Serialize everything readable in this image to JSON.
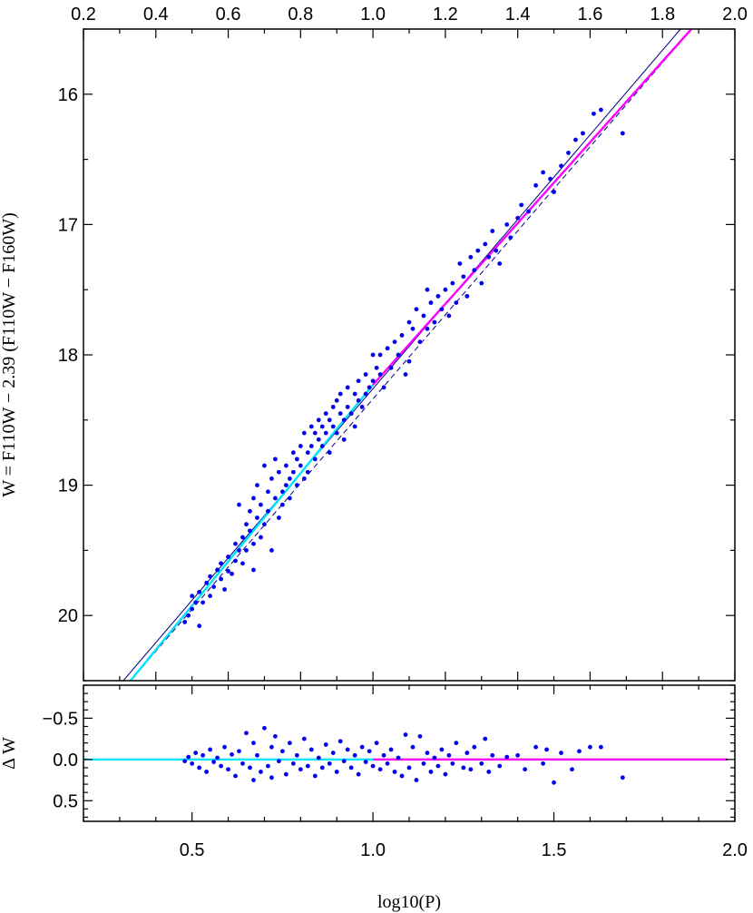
{
  "chart_data": [
    {
      "type": "scatter",
      "panel": "main",
      "title": "",
      "xlabel": "log10(P)",
      "ylabel": "W = F110W − 2.39 (F110W − F160W)",
      "xlim": [
        0.2,
        2.0
      ],
      "ylim": [
        20.5,
        15.5
      ],
      "y_inverted": true,
      "x_ticks": [
        "0.2",
        "0.4",
        "0.6",
        "0.8",
        "1.0",
        "1.2",
        "1.4",
        "1.6",
        "1.8",
        "2.0"
      ],
      "y_ticks": [
        "16",
        "17",
        "18",
        "19",
        "20"
      ],
      "grid": false,
      "lines": [
        {
          "x": [
            0.31,
            1.85
          ],
          "y": [
            20.5,
            15.5
          ],
          "color": "#000080",
          "style": "solid"
        },
        {
          "x": [
            0.33,
            1.88
          ],
          "y": [
            20.5,
            15.5
          ],
          "color": "#000080",
          "style": "dashed"
        },
        {
          "x": [
            0.33,
            1.0
          ],
          "y": [
            20.5,
            18.23
          ],
          "color": "#00e5ff",
          "style": "solid"
        },
        {
          "x": [
            1.0,
            1.88
          ],
          "y": [
            18.23,
            15.5
          ],
          "color": "#ff00ff",
          "style": "solid"
        }
      ],
      "points_color": "#0000ee",
      "points": [
        [
          0.48,
          20.05
        ],
        [
          0.49,
          20.0
        ],
        [
          0.5,
          19.95
        ],
        [
          0.5,
          19.85
        ],
        [
          0.51,
          19.9
        ],
        [
          0.52,
          20.08
        ],
        [
          0.52,
          19.82
        ],
        [
          0.53,
          19.9
        ],
        [
          0.54,
          19.75
        ],
        [
          0.55,
          19.85
        ],
        [
          0.55,
          19.7
        ],
        [
          0.56,
          19.78
        ],
        [
          0.57,
          19.65
        ],
        [
          0.58,
          19.72
        ],
        [
          0.58,
          19.6
        ],
        [
          0.59,
          19.8
        ],
        [
          0.6,
          19.55
        ],
        [
          0.6,
          19.66
        ],
        [
          0.61,
          19.68
        ],
        [
          0.62,
          19.45
        ],
        [
          0.62,
          19.58
        ],
        [
          0.63,
          19.5
        ],
        [
          0.63,
          19.15
        ],
        [
          0.64,
          19.4
        ],
        [
          0.64,
          19.6
        ],
        [
          0.65,
          19.3
        ],
        [
          0.65,
          19.5
        ],
        [
          0.66,
          19.2
        ],
        [
          0.66,
          19.35
        ],
        [
          0.67,
          19.1
        ],
        [
          0.67,
          19.45
        ],
        [
          0.67,
          19.65
        ],
        [
          0.68,
          19.25
        ],
        [
          0.68,
          19.0
        ],
        [
          0.69,
          19.4
        ],
        [
          0.69,
          19.15
        ],
        [
          0.7,
          18.85
        ],
        [
          0.7,
          19.3
        ],
        [
          0.71,
          19.05
        ],
        [
          0.71,
          19.2
        ],
        [
          0.72,
          18.95
        ],
        [
          0.72,
          19.5
        ],
        [
          0.73,
          19.1
        ],
        [
          0.73,
          18.8
        ],
        [
          0.74,
          19.25
        ],
        [
          0.74,
          18.9
        ],
        [
          0.75,
          19.05
        ],
        [
          0.75,
          19.15
        ],
        [
          0.76,
          18.85
        ],
        [
          0.76,
          19.0
        ],
        [
          0.77,
          18.95
        ],
        [
          0.77,
          19.1
        ],
        [
          0.78,
          18.75
        ],
        [
          0.78,
          18.9
        ],
        [
          0.79,
          19.0
        ],
        [
          0.79,
          18.8
        ],
        [
          0.8,
          18.85
        ],
        [
          0.8,
          18.7
        ],
        [
          0.81,
          18.95
        ],
        [
          0.81,
          18.6
        ],
        [
          0.82,
          18.75
        ],
        [
          0.82,
          18.9
        ],
        [
          0.83,
          18.55
        ],
        [
          0.83,
          18.7
        ],
        [
          0.84,
          18.8
        ],
        [
          0.84,
          18.6
        ],
        [
          0.85,
          18.65
        ],
        [
          0.85,
          18.5
        ],
        [
          0.86,
          18.7
        ],
        [
          0.86,
          18.55
        ],
        [
          0.87,
          18.45
        ],
        [
          0.87,
          18.6
        ],
        [
          0.88,
          18.75
        ],
        [
          0.88,
          18.5
        ],
        [
          0.89,
          18.4
        ],
        [
          0.89,
          18.55
        ],
        [
          0.9,
          18.35
        ],
        [
          0.9,
          18.6
        ],
        [
          0.91,
          18.45
        ],
        [
          0.91,
          18.3
        ],
        [
          0.92,
          18.5
        ],
        [
          0.92,
          18.65
        ],
        [
          0.93,
          18.4
        ],
        [
          0.93,
          18.25
        ],
        [
          0.94,
          18.45
        ],
        [
          0.95,
          18.3
        ],
        [
          0.95,
          18.55
        ],
        [
          0.96,
          18.35
        ],
        [
          0.96,
          18.2
        ],
        [
          0.97,
          18.4
        ],
        [
          0.98,
          18.15
        ],
        [
          0.98,
          18.3
        ],
        [
          0.99,
          18.25
        ],
        [
          1.0,
          18.0
        ],
        [
          1.0,
          18.2
        ],
        [
          1.01,
          18.1
        ],
        [
          1.02,
          18.15
        ],
        [
          1.02,
          18.0
        ],
        [
          1.03,
          18.25
        ],
        [
          1.04,
          17.95
        ],
        [
          1.05,
          18.1
        ],
        [
          1.06,
          17.9
        ],
        [
          1.07,
          18.0
        ],
        [
          1.08,
          17.85
        ],
        [
          1.09,
          18.15
        ],
        [
          1.1,
          17.75
        ],
        [
          1.1,
          18.05
        ],
        [
          1.11,
          17.8
        ],
        [
          1.12,
          17.65
        ],
        [
          1.13,
          17.9
        ],
        [
          1.14,
          17.7
        ],
        [
          1.15,
          17.5
        ],
        [
          1.15,
          17.8
        ],
        [
          1.16,
          17.6
        ],
        [
          1.17,
          17.75
        ],
        [
          1.18,
          17.55
        ],
        [
          1.19,
          17.65
        ],
        [
          1.2,
          17.5
        ],
        [
          1.21,
          17.7
        ],
        [
          1.22,
          17.45
        ],
        [
          1.23,
          17.6
        ],
        [
          1.24,
          17.3
        ],
        [
          1.25,
          17.4
        ],
        [
          1.26,
          17.55
        ],
        [
          1.27,
          17.25
        ],
        [
          1.28,
          17.35
        ],
        [
          1.29,
          17.2
        ],
        [
          1.3,
          17.45
        ],
        [
          1.31,
          17.15
        ],
        [
          1.32,
          17.25
        ],
        [
          1.33,
          17.05
        ],
        [
          1.34,
          17.2
        ],
        [
          1.35,
          17.3
        ],
        [
          1.37,
          17.0
        ],
        [
          1.38,
          17.1
        ],
        [
          1.4,
          16.95
        ],
        [
          1.41,
          16.85
        ],
        [
          1.43,
          16.9
        ],
        [
          1.45,
          16.7
        ],
        [
          1.47,
          16.6
        ],
        [
          1.49,
          16.65
        ],
        [
          1.5,
          16.75
        ],
        [
          1.52,
          16.55
        ],
        [
          1.54,
          16.45
        ],
        [
          1.56,
          16.35
        ],
        [
          1.58,
          16.3
        ],
        [
          1.61,
          16.15
        ],
        [
          1.63,
          16.12
        ],
        [
          1.69,
          16.3
        ]
      ]
    },
    {
      "type": "scatter",
      "panel": "residuals",
      "title": "",
      "xlabel": "log10(P)",
      "ylabel": "Δ W",
      "xlim": [
        0.2,
        2.0
      ],
      "ylim": [
        0.75,
        -0.9
      ],
      "y_inverted": true,
      "x_ticks": [
        "0.5",
        "1.0",
        "1.5",
        "2.0"
      ],
      "y_ticks": [
        "−0.5",
        "0.0",
        "0.5"
      ],
      "grid": false,
      "lines": [
        {
          "x": [
            0.2,
            1.0
          ],
          "y": [
            0.0,
            0.0
          ],
          "color": "#00e5ff",
          "style": "solid"
        },
        {
          "x": [
            1.0,
            1.98
          ],
          "y": [
            0.0,
            0.0
          ],
          "color": "#ff00ff",
          "style": "solid"
        }
      ],
      "points_color": "#0000ee",
      "points": [
        [
          0.48,
          0.02
        ],
        [
          0.49,
          -0.03
        ],
        [
          0.5,
          0.05
        ],
        [
          0.51,
          -0.08
        ],
        [
          0.52,
          0.1
        ],
        [
          0.53,
          -0.05
        ],
        [
          0.54,
          0.15
        ],
        [
          0.55,
          -0.12
        ],
        [
          0.56,
          0.03
        ],
        [
          0.57,
          -0.02
        ],
        [
          0.58,
          0.08
        ],
        [
          0.59,
          -0.15
        ],
        [
          0.6,
          0.12
        ],
        [
          0.61,
          -0.06
        ],
        [
          0.62,
          0.2
        ],
        [
          0.63,
          -0.1
        ],
        [
          0.64,
          0.05
        ],
        [
          0.65,
          -0.32
        ],
        [
          0.66,
          0.1
        ],
        [
          0.67,
          -0.2
        ],
        [
          0.67,
          0.25
        ],
        [
          0.68,
          -0.05
        ],
        [
          0.69,
          0.15
        ],
        [
          0.7,
          -0.38
        ],
        [
          0.71,
          0.08
        ],
        [
          0.72,
          -0.15
        ],
        [
          0.72,
          0.22
        ],
        [
          0.73,
          -0.28
        ],
        [
          0.74,
          0.02
        ],
        [
          0.75,
          -0.1
        ],
        [
          0.76,
          0.18
        ],
        [
          0.77,
          -0.2
        ],
        [
          0.78,
          0.05
        ],
        [
          0.79,
          -0.05
        ],
        [
          0.8,
          0.12
        ],
        [
          0.81,
          -0.25
        ],
        [
          0.82,
          0.08
        ],
        [
          0.83,
          -0.12
        ],
        [
          0.84,
          0.2
        ],
        [
          0.85,
          -0.02
        ],
        [
          0.86,
          0.1
        ],
        [
          0.87,
          -0.18
        ],
        [
          0.88,
          0.05
        ],
        [
          0.89,
          -0.08
        ],
        [
          0.9,
          0.15
        ],
        [
          0.91,
          -0.22
        ],
        [
          0.92,
          0.02
        ],
        [
          0.93,
          -0.12
        ],
        [
          0.94,
          0.1
        ],
        [
          0.95,
          -0.05
        ],
        [
          0.96,
          0.18
        ],
        [
          0.97,
          -0.15
        ],
        [
          0.98,
          0.03
        ],
        [
          0.99,
          -0.1
        ],
        [
          1.0,
          0.08
        ],
        [
          1.01,
          -0.2
        ],
        [
          1.02,
          0.12
        ],
        [
          1.03,
          -0.05
        ],
        [
          1.04,
          0.05
        ],
        [
          1.05,
          -0.12
        ],
        [
          1.06,
          0.15
        ],
        [
          1.07,
          -0.02
        ],
        [
          1.08,
          0.2
        ],
        [
          1.09,
          -0.3
        ],
        [
          1.1,
          0.1
        ],
        [
          1.11,
          -0.15
        ],
        [
          1.12,
          0.25
        ],
        [
          1.13,
          -0.28
        ],
        [
          1.14,
          0.05
        ],
        [
          1.15,
          -0.08
        ],
        [
          1.16,
          0.15
        ],
        [
          1.17,
          -0.02
        ],
        [
          1.18,
          0.08
        ],
        [
          1.19,
          -0.12
        ],
        [
          1.2,
          0.18
        ],
        [
          1.21,
          -0.05
        ],
        [
          1.22,
          0.05
        ],
        [
          1.23,
          -0.2
        ],
        [
          1.25,
          0.1
        ],
        [
          1.26,
          -0.08
        ],
        [
          1.27,
          0.12
        ],
        [
          1.28,
          -0.15
        ],
        [
          1.3,
          0.05
        ],
        [
          1.31,
          -0.25
        ],
        [
          1.32,
          0.15
        ],
        [
          1.33,
          -0.05
        ],
        [
          1.35,
          0.08
        ],
        [
          1.37,
          -0.03
        ],
        [
          1.4,
          -0.05
        ],
        [
          1.42,
          0.12
        ],
        [
          1.45,
          -0.15
        ],
        [
          1.47,
          0.05
        ],
        [
          1.48,
          -0.12
        ],
        [
          1.5,
          0.28
        ],
        [
          1.52,
          -0.08
        ],
        [
          1.55,
          0.12
        ],
        [
          1.57,
          -0.1
        ],
        [
          1.6,
          -0.15
        ],
        [
          1.63,
          -0.15
        ],
        [
          1.69,
          0.22
        ]
      ]
    }
  ]
}
